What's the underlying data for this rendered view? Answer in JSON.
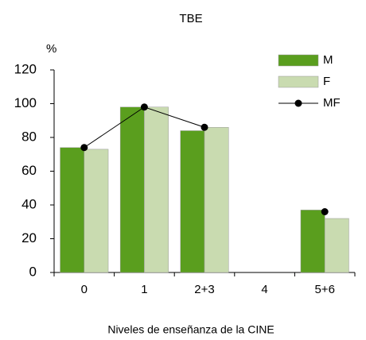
{
  "chart_data": {
    "type": "bar",
    "title": "TBE",
    "y_label": "%",
    "x_label": "Niveles de enseñanza de la CINE",
    "categories": [
      "0",
      "1",
      "2+3",
      "4",
      "5+6"
    ],
    "series": [
      {
        "name": "M",
        "color": "#5a9e1e",
        "type": "bar",
        "values": [
          74,
          98,
          84,
          null,
          37
        ]
      },
      {
        "name": "F",
        "color": "#c9dbb0",
        "type": "bar",
        "values": [
          73,
          98,
          86,
          null,
          32
        ]
      },
      {
        "name": "MF",
        "color": "#000000",
        "type": "line",
        "values": [
          74,
          98,
          86,
          null,
          36
        ]
      }
    ],
    "ylim": [
      0,
      120
    ],
    "yticks": [
      0,
      20,
      40,
      60,
      80,
      100,
      120
    ],
    "legend": "top-right"
  }
}
